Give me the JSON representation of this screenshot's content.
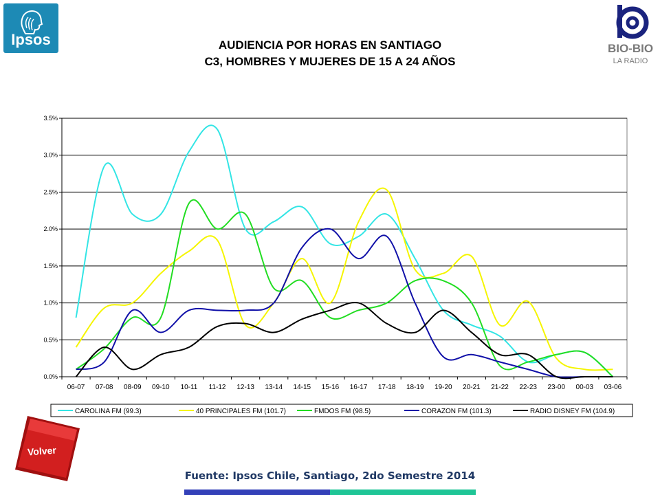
{
  "header": {
    "title_line1": "AUDIENCIA POR HORAS EN SANTIAGO",
    "title_line2": "C3, HOMBRES Y MUJERES DE 15 A 24 AÑOS"
  },
  "logos": {
    "left_logo_text": "Ipsos",
    "right_logo_text": "BIO-BIO",
    "right_logo_subtext": "LA RADIO"
  },
  "nav": {
    "back_button_label": "Volver"
  },
  "footer": {
    "source": "Fuente: Ipsos Chile, Santiago, 2do Semestre 2014"
  },
  "colors": {
    "ipsos_blue": "#1d8ab5",
    "volver_red": "#d21f1f",
    "footer_blue": "#3340b8",
    "footer_green": "#1fc596"
  },
  "chart_data": {
    "type": "line",
    "title": "",
    "xlabel": "",
    "ylabel": "",
    "ylim": [
      0,
      3.5
    ],
    "yticks": [
      "0.0%",
      "0.5%",
      "1.0%",
      "1.5%",
      "2.0%",
      "2.5%",
      "3.0%",
      "3.5%"
    ],
    "grid": true,
    "legend_position": "bottom",
    "categories": [
      "06-07",
      "07-08",
      "08-09",
      "09-10",
      "10-11",
      "11-12",
      "12-13",
      "13-14",
      "14-15",
      "15-16",
      "16-17",
      "17-18",
      "18-19",
      "19-20",
      "20-21",
      "21-22",
      "22-23",
      "23-00",
      "00-03",
      "03-06"
    ],
    "series": [
      {
        "name": "CAROLINA FM (99.3)",
        "color": "#33e5e5",
        "values": [
          0.8,
          2.85,
          2.2,
          2.2,
          3.05,
          3.35,
          2.0,
          2.1,
          2.3,
          1.8,
          1.9,
          2.2,
          1.6,
          0.9,
          0.7,
          0.55,
          0.2,
          0.3,
          0.33,
          0.0
        ]
      },
      {
        "name": "40 PRINCIPALES FM (101.7)",
        "color": "#f5f500",
        "values": [
          0.4,
          0.93,
          1.0,
          1.4,
          1.7,
          1.85,
          0.7,
          1.0,
          1.6,
          1.0,
          2.1,
          2.53,
          1.45,
          1.4,
          1.63,
          0.7,
          1.02,
          0.25,
          0.1,
          0.1
        ]
      },
      {
        "name": "FMDOS FM (98.5)",
        "color": "#22dd22",
        "values": [
          0.1,
          0.38,
          0.8,
          0.8,
          2.35,
          2.0,
          2.2,
          1.2,
          1.3,
          0.8,
          0.9,
          1.0,
          1.3,
          1.3,
          1.0,
          0.15,
          0.2,
          0.3,
          0.33,
          0.0
        ]
      },
      {
        "name": "CORAZON FM (101.3)",
        "color": "#1010a8",
        "values": [
          0.1,
          0.2,
          0.9,
          0.6,
          0.9,
          0.9,
          0.9,
          1.0,
          1.75,
          2.0,
          1.6,
          1.9,
          1.0,
          0.27,
          0.3,
          0.2,
          0.1,
          0.0,
          0.0,
          0.0
        ]
      },
      {
        "name": "RADIO DISNEY FM (104.9)",
        "color": "#000000",
        "values": [
          0.0,
          0.4,
          0.1,
          0.3,
          0.4,
          0.68,
          0.72,
          0.6,
          0.78,
          0.9,
          1.0,
          0.72,
          0.6,
          0.9,
          0.6,
          0.3,
          0.3,
          0.0,
          0.0,
          0.0
        ]
      }
    ]
  }
}
